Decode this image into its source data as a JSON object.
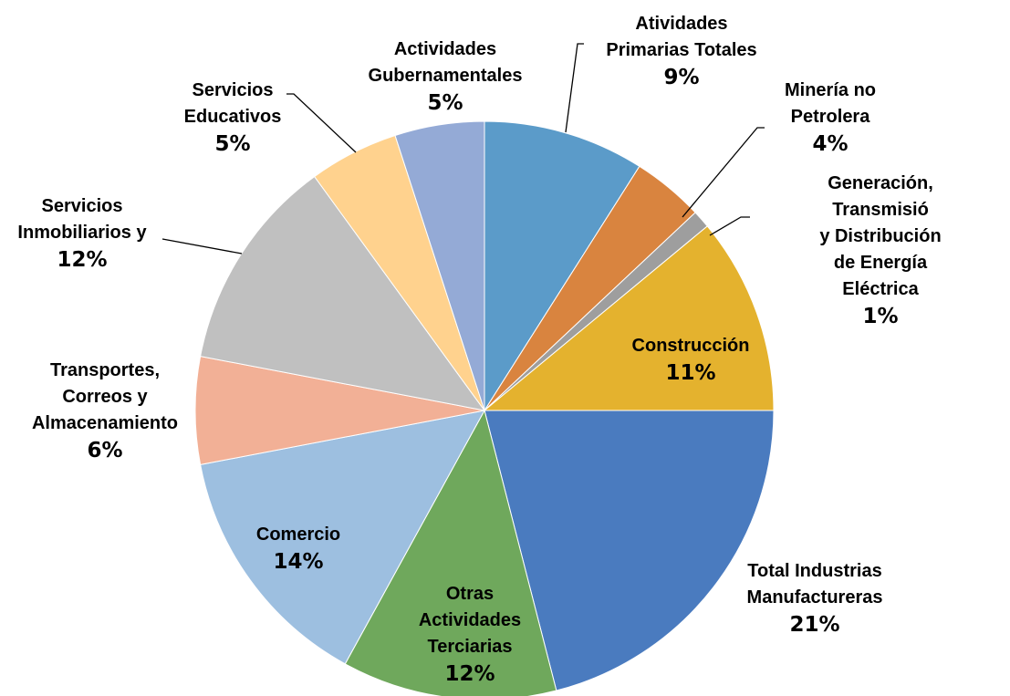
{
  "chart_data": {
    "type": "pie",
    "categories": [
      "Atividades\nPrimarias Totales",
      "Minería no\nPetrolera",
      "Generación, Transmisió\ny Distribución de Energía\nEléctrica",
      "Construcción",
      "Total Industrias\nManufactureras",
      "Otras\nActividades\nTerciarias",
      "Comercio",
      "Transportes,\nCorreos y\nAlmacenamiento",
      "Servicios\nInmobiliarios y",
      "Servicios\nEducativos",
      "Actividades\nGubernamentales"
    ],
    "values": [
      9,
      4,
      1,
      11,
      21,
      12,
      14,
      6,
      12,
      5,
      5
    ],
    "value_labels": [
      "9%",
      "4%",
      "1%",
      "11%",
      "21%",
      "12%",
      "14%",
      "6%",
      "12%",
      "5%",
      "5%"
    ],
    "colors": [
      "#5b9bc9",
      "#d9843f",
      "#9e9e9e",
      "#e4b22e",
      "#4a7bbf",
      "#6fa85c",
      "#9dbfe0",
      "#f2b096",
      "#c0c0c0",
      "#ffd28e",
      "#94aad6"
    ]
  }
}
